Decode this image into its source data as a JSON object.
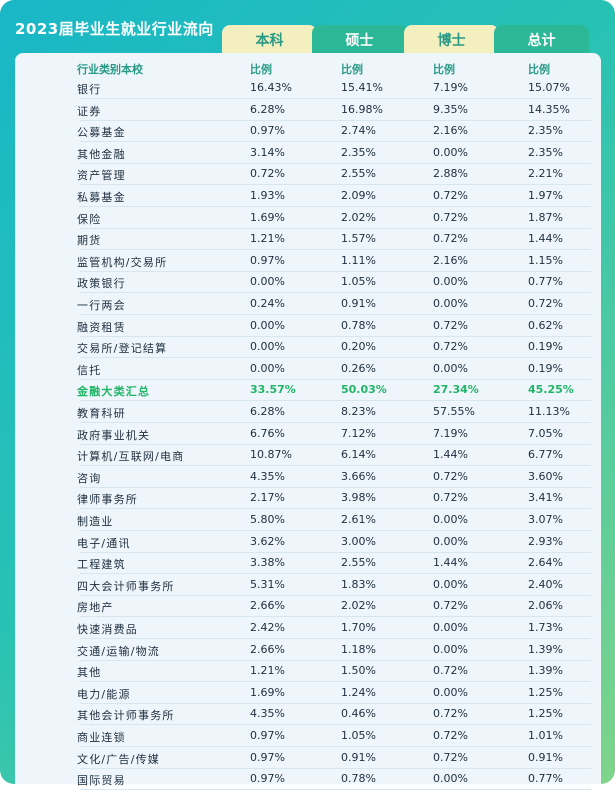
{
  "title": "2023届毕业生就业行业流向",
  "tabs": [
    "本科",
    "硕士",
    "博士",
    "总计"
  ],
  "header": {
    "col0": "行业类别本校",
    "ratio": "比例"
  },
  "rows": [
    [
      "银行",
      "16.43%",
      "15.41%",
      "7.19%",
      "15.07%"
    ],
    [
      "证券",
      "6.28%",
      "16.98%",
      "9.35%",
      "14.35%"
    ],
    [
      "公募基金",
      "0.97%",
      "2.74%",
      "2.16%",
      "2.35%"
    ],
    [
      "其他金融",
      "3.14%",
      "2.35%",
      "0.00%",
      "2.35%"
    ],
    [
      "资产管理",
      "0.72%",
      "2.55%",
      "2.88%",
      "2.21%"
    ],
    [
      "私募基金",
      "1.93%",
      "2.09%",
      "0.72%",
      "1.97%"
    ],
    [
      "保险",
      "1.69%",
      "2.02%",
      "0.72%",
      "1.87%"
    ],
    [
      "期货",
      "1.21%",
      "1.57%",
      "0.72%",
      "1.44%"
    ],
    [
      "监管机构/交易所",
      "0.97%",
      "1.11%",
      "2.16%",
      "1.15%"
    ],
    [
      "政策银行",
      "0.00%",
      "1.05%",
      "0.00%",
      "0.77%"
    ],
    [
      "一行两会",
      "0.24%",
      "0.91%",
      "0.00%",
      "0.72%"
    ],
    [
      "融资租赁",
      "0.00%",
      "0.78%",
      "0.72%",
      "0.62%"
    ],
    [
      "交易所/登记结算",
      "0.00%",
      "0.20%",
      "0.72%",
      "0.19%"
    ],
    [
      "信托",
      "0.00%",
      "0.26%",
      "0.00%",
      "0.19%"
    ],
    [
      "金融大类汇总",
      "33.57%",
      "50.03%",
      "27.34%",
      "45.25%"
    ],
    [
      "教育科研",
      "6.28%",
      "8.23%",
      "57.55%",
      "11.13%"
    ],
    [
      "政府事业机关",
      "6.76%",
      "7.12%",
      "7.19%",
      "7.05%"
    ],
    [
      "计算机/互联网/电商",
      "10.87%",
      "6.14%",
      "1.44%",
      "6.77%"
    ],
    [
      "咨询",
      "4.35%",
      "3.66%",
      "0.72%",
      "3.60%"
    ],
    [
      "律师事务所",
      "2.17%",
      "3.98%",
      "0.72%",
      "3.41%"
    ],
    [
      "制造业",
      "5.80%",
      "2.61%",
      "0.00%",
      "3.07%"
    ],
    [
      "电子/通讯",
      "3.62%",
      "3.00%",
      "0.00%",
      "2.93%"
    ],
    [
      "工程建筑",
      "3.38%",
      "2.55%",
      "1.44%",
      "2.64%"
    ],
    [
      "四大会计师事务所",
      "5.31%",
      "1.83%",
      "0.00%",
      "2.40%"
    ],
    [
      "房地产",
      "2.66%",
      "2.02%",
      "0.72%",
      "2.06%"
    ],
    [
      "快速消费品",
      "2.42%",
      "1.70%",
      "0.00%",
      "1.73%"
    ],
    [
      "交通/运输/物流",
      "2.66%",
      "1.18%",
      "0.00%",
      "1.39%"
    ],
    [
      "其他",
      "1.21%",
      "1.50%",
      "0.72%",
      "1.39%"
    ],
    [
      "电力/能源",
      "1.69%",
      "1.24%",
      "0.00%",
      "1.25%"
    ],
    [
      "其他会计师事务所",
      "4.35%",
      "0.46%",
      "0.72%",
      "1.25%"
    ],
    [
      "商业连锁",
      "0.97%",
      "1.05%",
      "0.72%",
      "1.01%"
    ],
    [
      "文化/广告/传媒",
      "0.97%",
      "0.91%",
      "0.72%",
      "0.91%"
    ],
    [
      "国际贸易",
      "0.97%",
      "0.78%",
      "0.00%",
      "0.77%"
    ]
  ],
  "highlight_row": "金融大类汇总",
  "colors": {
    "header_teal": "#2a9a86",
    "highlight_green": "#22b568"
  }
}
